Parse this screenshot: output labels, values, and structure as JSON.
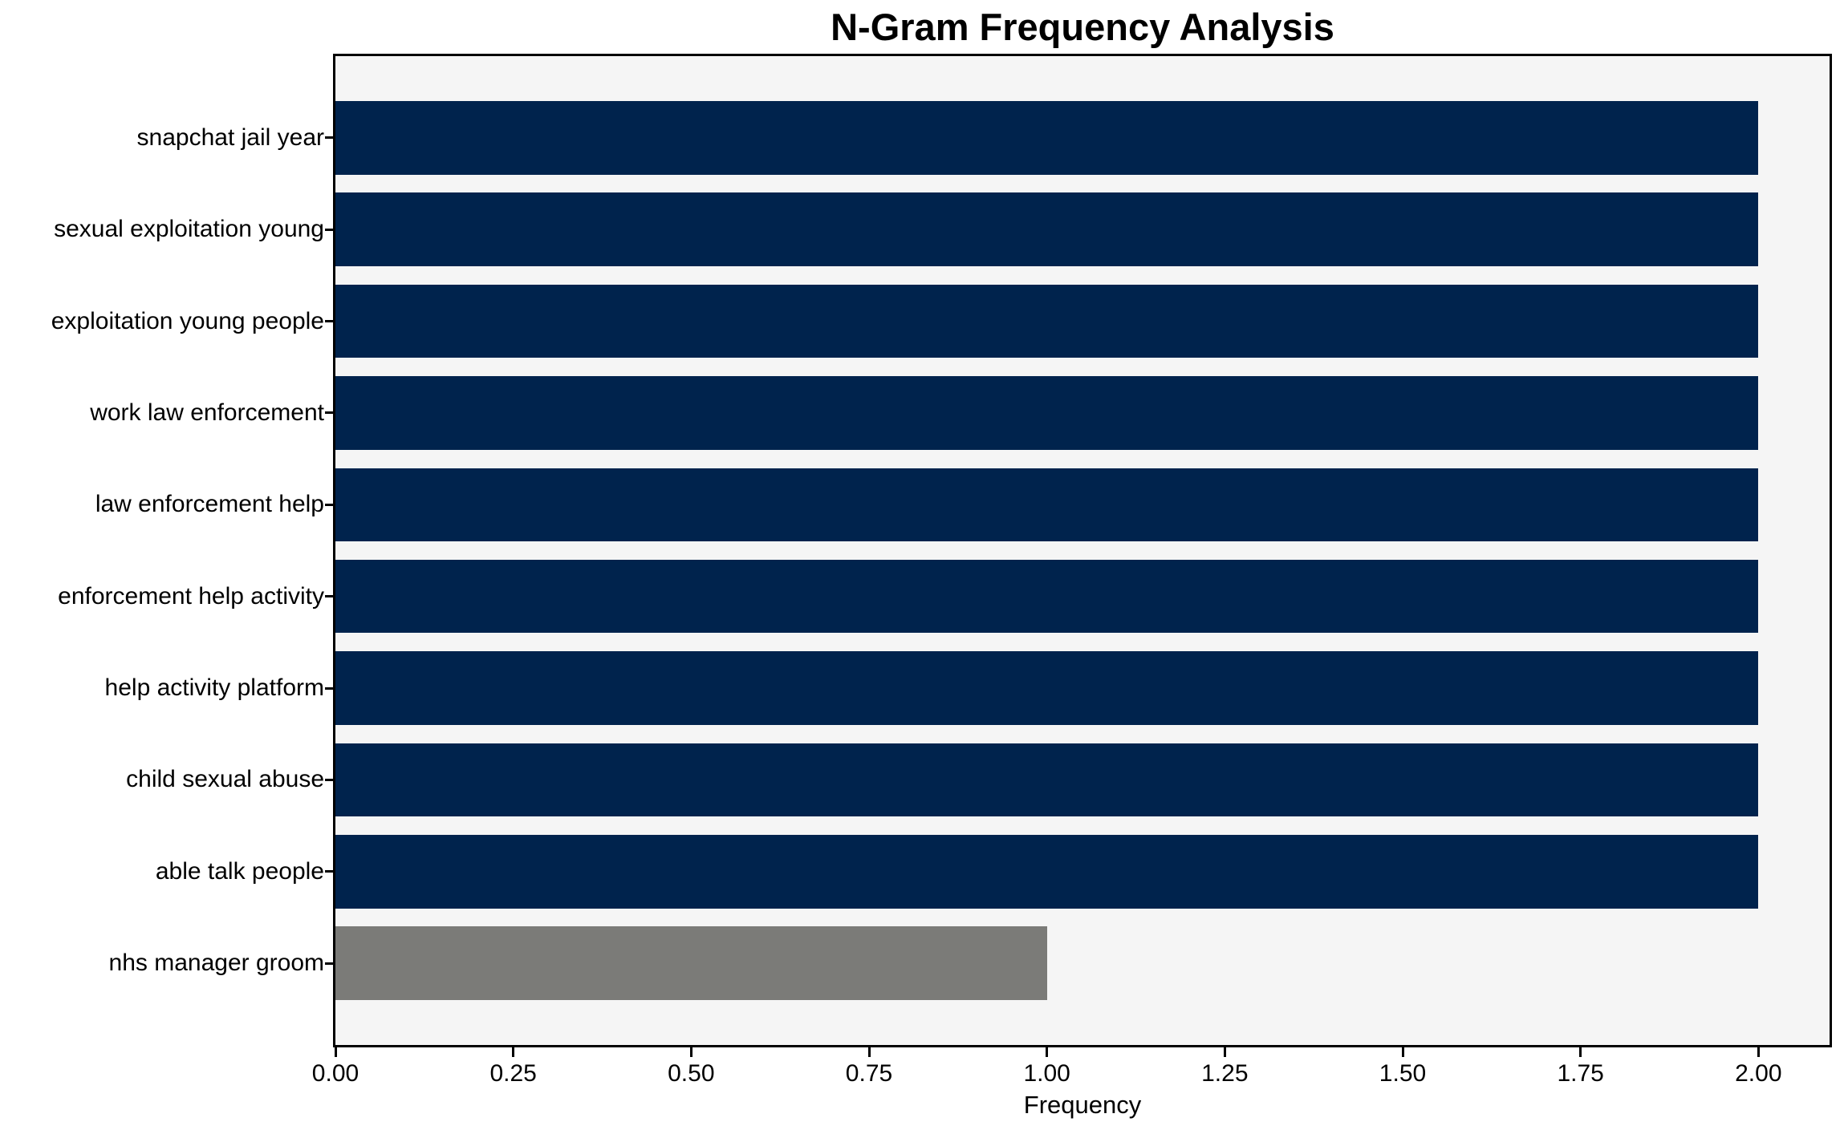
{
  "chart_data": {
    "type": "bar",
    "orientation": "horizontal",
    "title": "N-Gram Frequency Analysis",
    "xlabel": "Frequency",
    "ylabel": "",
    "categories": [
      "snapchat jail year",
      "sexual exploitation young",
      "exploitation young people",
      "work law enforcement",
      "law enforcement help",
      "enforcement help activity",
      "help activity platform",
      "child sexual abuse",
      "able talk people",
      "nhs manager groom"
    ],
    "values": [
      2,
      2,
      2,
      2,
      2,
      2,
      2,
      2,
      2,
      1
    ],
    "bar_colors": [
      "#00234d",
      "#00234d",
      "#00234d",
      "#00234d",
      "#00234d",
      "#00234d",
      "#00234d",
      "#00234d",
      "#00234d",
      "#7b7b78"
    ],
    "xlim": [
      0,
      2.1
    ],
    "xticks": [
      0,
      0.25,
      0.5,
      0.75,
      1.0,
      1.25,
      1.5,
      1.75,
      2.0
    ],
    "xtick_labels": [
      "0.00",
      "0.25",
      "0.50",
      "0.75",
      "1.00",
      "1.25",
      "1.50",
      "1.75",
      "2.00"
    ],
    "grid": false,
    "legend": null,
    "colors": {
      "plot_background": "#f5f5f5",
      "figure_background": "#ffffff",
      "spine": "#000000",
      "text": "#000000"
    }
  }
}
